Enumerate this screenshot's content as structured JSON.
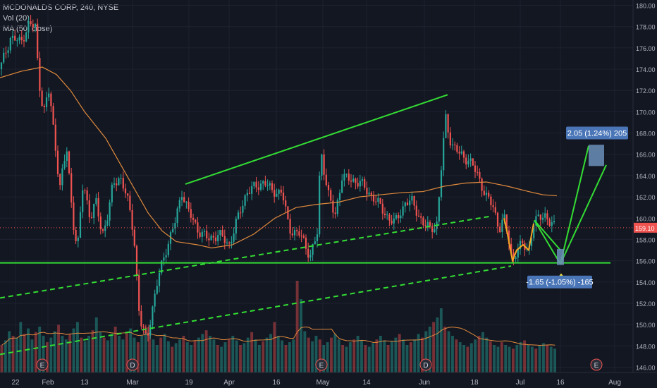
{
  "legend": {
    "symbol": "MCDONALDS CORP, 240, NYSE",
    "volume": "Vol (20)",
    "ma": "MA (50, close)"
  },
  "colors": {
    "background": "#131722",
    "up": "#26a69a",
    "down": "#ef5350",
    "ma_line": "#e08a3c",
    "trend_line": "#33dd33",
    "price_line": "#ef5350",
    "price_badge": "#ef5350",
    "projection_box": "#6c8fb8"
  },
  "chart_data": {
    "type": "candlestick",
    "y_axis": {
      "range": [
        145.5,
        180.5
      ],
      "ticks": [
        "180.00",
        "178.00",
        "176.00",
        "174.00",
        "172.00",
        "170.00",
        "168.00",
        "166.00",
        "164.00",
        "162.00",
        "160.00",
        "158.00",
        "156.00",
        "154.00",
        "152.00",
        "150.00",
        "148.00",
        "146.00"
      ],
      "last_price": "159.10"
    },
    "x_axis": {
      "ticks": [
        "22",
        "Feb",
        "13",
        "Mar",
        "19",
        "Apr",
        "16",
        "May",
        "14",
        "Jun",
        "18",
        "Jul",
        "16",
        "Aug"
      ]
    },
    "price_path": [
      [
        0,
        174.0
      ],
      [
        15,
        177.0
      ],
      [
        30,
        176.5
      ],
      [
        40,
        178.2
      ],
      [
        50,
        178.0
      ],
      [
        55,
        173.0
      ],
      [
        62,
        170.0
      ],
      [
        70,
        172.0
      ],
      [
        78,
        167.0
      ],
      [
        85,
        163.0
      ],
      [
        95,
        166.5
      ],
      [
        103,
        160.0
      ],
      [
        110,
        157.0
      ],
      [
        118,
        163.5
      ],
      [
        128,
        160.0
      ],
      [
        136,
        161.5
      ],
      [
        145,
        158.5
      ],
      [
        152,
        160.0
      ],
      [
        160,
        163.0
      ],
      [
        170,
        164.0
      ],
      [
        180,
        162.0
      ],
      [
        190,
        158.5
      ],
      [
        198,
        150.5
      ],
      [
        208,
        148.5
      ],
      [
        216,
        151.5
      ],
      [
        225,
        154.5
      ],
      [
        235,
        157.0
      ],
      [
        248,
        159.5
      ],
      [
        258,
        162.5
      ],
      [
        268,
        160.5
      ],
      [
        280,
        159.0
      ],
      [
        295,
        158.0
      ],
      [
        310,
        158.5
      ],
      [
        325,
        157.5
      ],
      [
        340,
        160.5
      ],
      [
        350,
        162.5
      ],
      [
        365,
        163.0
      ],
      [
        375,
        163.5
      ],
      [
        385,
        162.5
      ],
      [
        400,
        162.5
      ],
      [
        410,
        159.0
      ],
      [
        425,
        158.5
      ],
      [
        440,
        156.5
      ],
      [
        450,
        158.5
      ],
      [
        455,
        166.5
      ],
      [
        465,
        162.5
      ],
      [
        475,
        160.0
      ],
      [
        485,
        164.0
      ],
      [
        498,
        163.5
      ],
      [
        510,
        163.5
      ],
      [
        520,
        162.5
      ],
      [
        530,
        162.0
      ],
      [
        545,
        160.5
      ],
      [
        560,
        159.5
      ],
      [
        575,
        161.5
      ],
      [
        585,
        161.5
      ],
      [
        600,
        159.5
      ],
      [
        610,
        159.0
      ],
      [
        620,
        159.5
      ],
      [
        627,
        165.5
      ],
      [
        632,
        169.5
      ],
      [
        640,
        167.0
      ],
      [
        652,
        166.0
      ],
      [
        665,
        165.5
      ],
      [
        678,
        164.0
      ],
      [
        690,
        162.0
      ],
      [
        700,
        161.0
      ],
      [
        708,
        159.0
      ],
      [
        715,
        160.0
      ],
      [
        720,
        158.5
      ],
      [
        727,
        156.0
      ],
      [
        733,
        157.0
      ],
      [
        742,
        157.5
      ],
      [
        750,
        157.0
      ],
      [
        757,
        159.5
      ],
      [
        765,
        160.0
      ],
      [
        772,
        160.5
      ],
      [
        780,
        159.5
      ],
      [
        788,
        159.1
      ]
    ],
    "ma_path": [
      [
        0,
        173.2
      ],
      [
        30,
        173.8
      ],
      [
        60,
        174.2
      ],
      [
        80,
        173.5
      ],
      [
        100,
        172.0
      ],
      [
        120,
        170.0
      ],
      [
        150,
        167.5
      ],
      [
        180,
        164.0
      ],
      [
        210,
        160.5
      ],
      [
        230,
        158.8
      ],
      [
        250,
        157.8
      ],
      [
        280,
        157.5
      ],
      [
        300,
        157.2
      ],
      [
        330,
        157.5
      ],
      [
        360,
        158.5
      ],
      [
        390,
        160.0
      ],
      [
        420,
        161.0
      ],
      [
        450,
        161.3
      ],
      [
        480,
        161.5
      ],
      [
        510,
        162.0
      ],
      [
        540,
        162.2
      ],
      [
        570,
        162.4
      ],
      [
        600,
        162.5
      ],
      [
        630,
        163.0
      ],
      [
        660,
        163.3
      ],
      [
        690,
        163.4
      ],
      [
        720,
        163.0
      ],
      [
        750,
        162.5
      ],
      [
        770,
        162.2
      ],
      [
        790,
        162.1
      ]
    ],
    "volume": [
      0.3,
      0.35,
      0.45,
      0.4,
      0.38,
      0.55,
      0.42,
      0.48,
      0.36,
      0.44,
      0.5,
      0.4,
      0.33,
      0.38,
      0.45,
      0.52,
      0.4,
      0.36,
      0.42,
      0.48,
      0.55,
      0.38,
      0.34,
      0.4,
      0.46,
      0.6,
      0.44,
      0.38,
      0.35,
      0.42,
      0.5,
      0.4,
      0.36,
      0.44,
      0.48,
      0.38,
      0.33,
      0.4,
      0.45,
      0.52,
      0.36,
      0.3,
      0.38,
      0.42,
      0.34,
      0.28,
      0.32,
      0.36,
      0.4,
      0.33,
      0.3,
      0.35,
      0.38,
      0.42,
      0.46,
      0.4,
      0.36,
      0.3,
      0.28,
      0.33,
      0.36,
      0.4,
      0.35,
      0.3,
      0.32,
      0.38,
      0.44,
      0.36,
      0.3,
      0.34,
      0.38,
      0.42,
      0.55,
      0.4,
      0.35,
      0.3,
      0.33,
      0.36,
      1.0,
      0.8,
      0.45,
      0.38,
      0.34,
      0.4,
      0.36,
      0.3,
      0.33,
      0.38,
      0.42,
      0.36,
      0.3,
      0.28,
      0.33,
      0.36,
      0.4,
      0.35,
      0.3,
      0.28,
      0.32,
      0.36,
      0.4,
      0.35,
      0.3,
      0.34,
      0.38,
      0.42,
      0.36,
      0.3,
      0.33,
      0.36,
      0.42,
      0.38,
      0.45,
      0.5,
      0.55,
      0.6,
      0.7,
      0.5,
      0.45,
      0.4,
      0.36,
      0.33,
      0.3,
      0.28,
      0.32,
      0.36,
      0.4,
      0.44,
      0.38,
      0.34,
      0.3,
      0.28,
      0.33,
      0.3,
      0.28,
      0.26,
      0.3,
      0.33,
      0.35,
      0.3,
      0.28,
      0.26,
      0.3,
      0.32,
      0.3,
      0.28,
      0.26
    ],
    "trend_lines": [
      {
        "style": "solid",
        "from": [
          263,
          163.2
        ],
        "to": [
          635,
          171.6
        ]
      },
      {
        "style": "solid",
        "from": [
          0,
          155.8
        ],
        "to": [
          866,
          155.8
        ]
      },
      {
        "style": "dashed",
        "from": [
          0,
          152.5
        ],
        "to": [
          698,
          160.2
        ]
      },
      {
        "style": "dashed",
        "from": [
          0,
          147.2
        ],
        "to": [
          725,
          155.5
        ]
      },
      {
        "style": "solid",
        "from": [
          758,
          159.8
        ],
        "to": [
          795,
          157.0
        ]
      },
      {
        "style": "solid",
        "from": [
          758,
          159.8
        ],
        "to": [
          795,
          155.7
        ]
      },
      {
        "style": "solid",
        "from": [
          795,
          155.7
        ],
        "to": [
          835,
          166.8
        ]
      },
      {
        "style": "solid",
        "from": [
          795,
          155.7
        ],
        "to": [
          860,
          165.0
        ]
      }
    ],
    "annotations": {
      "upper_label": "2.05 (1.24%) 205",
      "lower_label": "-1.65 (-1.05%) -165",
      "event_markers": [
        {
          "text": "E",
          "x": 60
        },
        {
          "text": "D",
          "x": 188
        },
        {
          "text": "E",
          "x": 456
        },
        {
          "text": "D",
          "x": 604
        },
        {
          "text": "E",
          "x": 846
        }
      ]
    }
  }
}
